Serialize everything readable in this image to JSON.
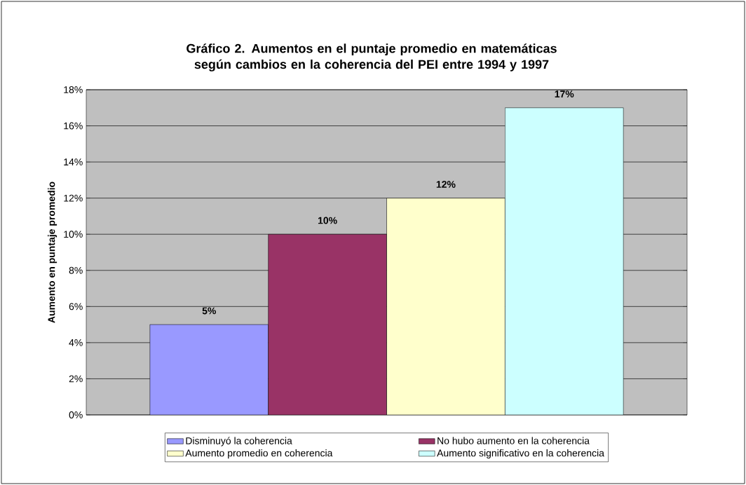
{
  "chart_data": {
    "type": "bar",
    "title": "Gráfico 2. Aumentos en el puntaje promedio en matemáticas según cambios en la coherencia del PEI entre 1994 y 1997",
    "ylabel": "Aumento en puntaje promedio",
    "categories": [
      null
    ],
    "series": [
      {
        "name": "Disminuyó la coherencia",
        "color": "#9999ff",
        "values": [
          5
        ],
        "value_labels": [
          "5%"
        ]
      },
      {
        "name": "No hubo aumento en la coherencia",
        "color": "#993366",
        "values": [
          10
        ],
        "value_labels": [
          "10%"
        ]
      },
      {
        "name": "Aumento promedio en coherencia",
        "color": "#ffffcc",
        "values": [
          12
        ],
        "value_labels": [
          "12%"
        ]
      },
      {
        "name": "Aumento significativo en la coherencia",
        "color": "#ccffff",
        "values": [
          17
        ],
        "value_labels": [
          "17%"
        ]
      }
    ],
    "ylim": [
      0,
      18
    ],
    "yticks": [
      {
        "value": 0,
        "label": "0%"
      },
      {
        "value": 2,
        "label": "2%"
      },
      {
        "value": 4,
        "label": "4%"
      },
      {
        "value": 6,
        "label": "6%"
      },
      {
        "value": 8,
        "label": "8%"
      },
      {
        "value": 10,
        "label": "10%"
      },
      {
        "value": 12,
        "label": "12%"
      },
      {
        "value": 14,
        "label": "14%"
      },
      {
        "value": 16,
        "label": "16%"
      },
      {
        "value": 18,
        "label": "18%"
      }
    ],
    "grid": "y",
    "legend": "bottom"
  }
}
